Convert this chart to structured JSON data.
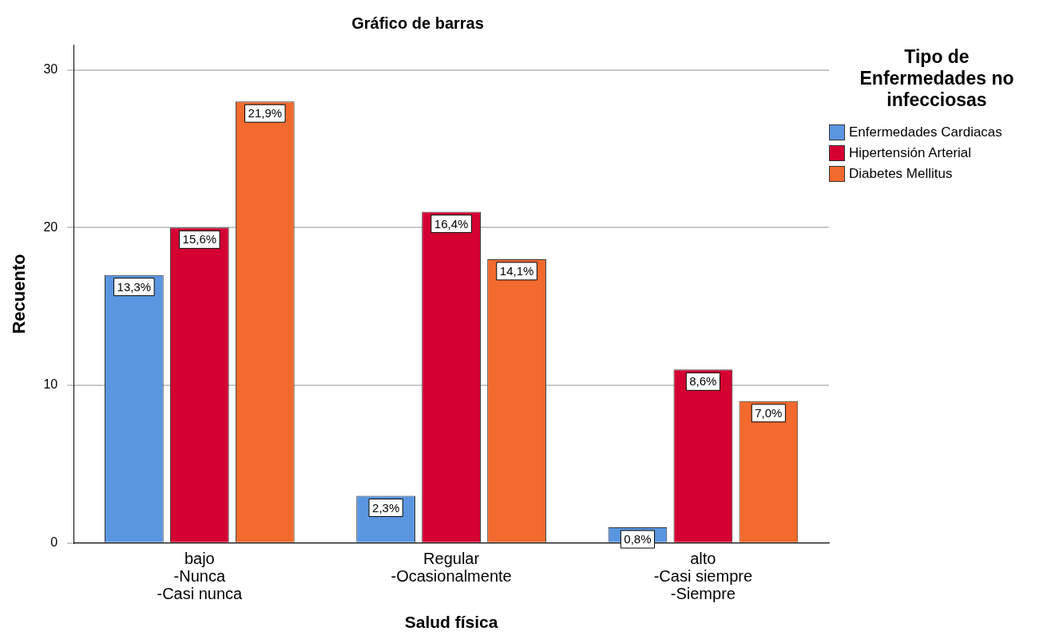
{
  "chart_data": {
    "type": "bar",
    "title": "Gráfico de barras",
    "xlabel": "Salud física",
    "ylabel": "Recuento",
    "legend_title": "Tipo de Enfermedades no infecciosas",
    "legend": "right",
    "categories": [
      "bajo\n-Nunca\n-Casi nunca",
      "Regular\n-Ocasionalmente",
      "alto\n-Casi siempre\n-Siempre"
    ],
    "series": [
      {
        "name": "Enfermedades Cardiacas",
        "color": "#5a96e0",
        "values": [
          17,
          3,
          1
        ]
      },
      {
        "name": "Hipertensión Arterial",
        "color": "#d50032",
        "values": [
          20,
          21,
          11
        ]
      },
      {
        "name": "Diabetes Mellitus",
        "color": "#f26a2d",
        "values": [
          28,
          18,
          9
        ]
      }
    ],
    "annotations": [
      "13,3%",
      "2,3%",
      "0,8%",
      "15,6%",
      "16,4%",
      "8,6%",
      "21,9%",
      "14,1%",
      "7,0%"
    ],
    "ylim": [
      0,
      31.6
    ],
    "yticks": [
      0,
      10,
      20,
      30
    ],
    "grid": "y"
  }
}
